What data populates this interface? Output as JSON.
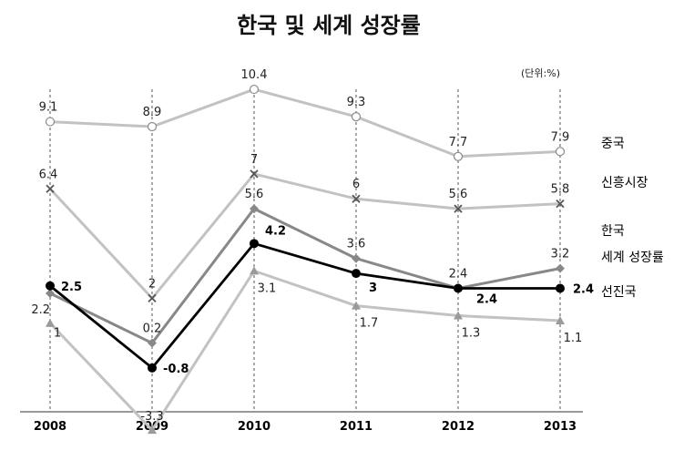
{
  "chart_data": {
    "type": "line",
    "title": "한국 및 세계 성장률",
    "unit_note": "(단위:%)",
    "x": [
      "2008",
      "2009",
      "2010",
      "2011",
      "2012",
      "2013"
    ],
    "ylim": [
      -5,
      12
    ],
    "grid": "vertical dashed",
    "legend": "right, labels at line ends",
    "series": [
      {
        "name": "중국",
        "values": [
          9.1,
          8.9,
          10.4,
          9.3,
          7.7,
          7.9
        ],
        "labels": [
          "9.1",
          "8.9",
          "10.4",
          "9.3",
          "7.7",
          "7.9"
        ],
        "color": "#c2c2c2",
        "marker": "circle"
      },
      {
        "name": "신흥시장",
        "values": [
          6.4,
          2,
          7,
          6,
          5.6,
          5.8
        ],
        "labels": [
          "6.4",
          "2",
          "7",
          "6",
          "5.6",
          "5.8"
        ],
        "color": "#c2c2c2",
        "marker": "x"
      },
      {
        "name": "한국",
        "values": [
          2.2,
          0.2,
          5.6,
          3.6,
          2.4,
          3.2
        ],
        "labels": [
          "2.2",
          "0.2",
          "5.6",
          "3.6",
          "2.4",
          "3.2"
        ],
        "color": "#888888",
        "marker": "diamond"
      },
      {
        "name": "세계 성장률",
        "values": [
          2.5,
          -0.8,
          4.2,
          3,
          2.4,
          2.4
        ],
        "labels": [
          "2.5",
          "-0.8",
          "4.2",
          "3",
          "2.4",
          "2.4"
        ],
        "color": "#000000",
        "marker": "dot"
      },
      {
        "name": "선진국",
        "values": [
          1,
          -3.3,
          3.1,
          1.7,
          1.3,
          1.1
        ],
        "labels": [
          "1",
          "-3.3",
          "3.1",
          "1.7",
          "1.3",
          "1.1"
        ],
        "color": "#c2c2c2",
        "marker": "triangle"
      }
    ]
  }
}
